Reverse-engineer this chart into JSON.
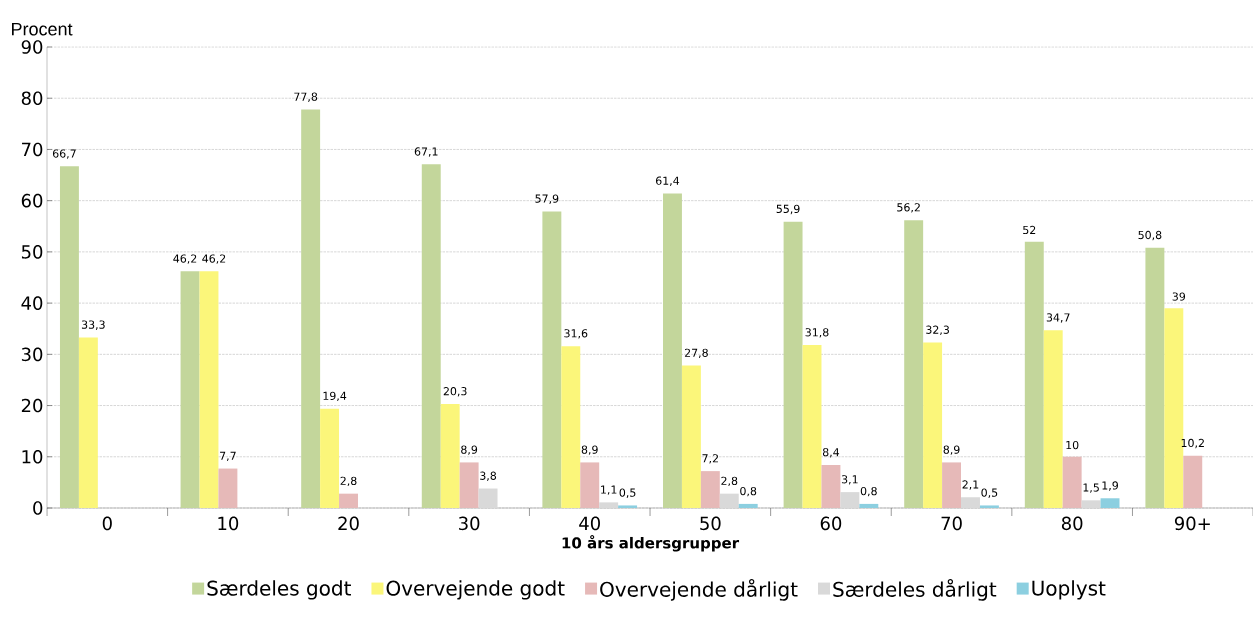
{
  "chart_data": {
    "type": "bar",
    "ylabel": "Procent",
    "xlabel": "10 års aldersgrupper",
    "categories": [
      "0",
      "10",
      "20",
      "30",
      "40",
      "50",
      "60",
      "70",
      "80",
      "90+"
    ],
    "ylim": [
      0,
      90
    ],
    "yticks": [
      0,
      10,
      20,
      30,
      40,
      50,
      60,
      70,
      80,
      90
    ],
    "grid": "y",
    "legend": "bottom",
    "series": [
      {
        "name": "Særdeles godt",
        "color": "#c3d69b",
        "values": [
          66.7,
          46.2,
          77.8,
          67.1,
          57.9,
          61.4,
          55.9,
          56.2,
          52,
          50.8
        ],
        "value_labels": [
          "66,7",
          "46,2",
          "77,8",
          "67,1",
          "57,9",
          "61,4",
          "55,9",
          "56,2",
          "52",
          "50,8"
        ]
      },
      {
        "name": "Overvejende godt",
        "color": "#fbf67a",
        "values": [
          33.3,
          46.2,
          19.4,
          20.3,
          31.6,
          27.8,
          31.8,
          32.3,
          34.7,
          39
        ],
        "value_labels": [
          "33,3",
          "46,2",
          "19,4",
          "20,3",
          "31,6",
          "27,8",
          "31,8",
          "32,3",
          "34,7",
          "39"
        ]
      },
      {
        "name": "Overvejende dårligt",
        "color": "#e6b9b8",
        "values": [
          null,
          7.7,
          2.8,
          8.9,
          8.9,
          7.2,
          8.4,
          8.9,
          10,
          10.2
        ],
        "value_labels": [
          null,
          "7,7",
          "2,8",
          "8,9",
          "8,9",
          "7,2",
          "8,4",
          "8,9",
          "10",
          "10,2"
        ]
      },
      {
        "name": "Særdeles dårligt",
        "color": "#d9d9d9",
        "values": [
          null,
          null,
          null,
          3.8,
          1.1,
          2.8,
          3.1,
          2.1,
          1.5,
          null
        ],
        "value_labels": [
          null,
          null,
          null,
          "3,8",
          "1,1",
          "2,8",
          "3,1",
          "2,1",
          "1,5",
          null
        ]
      },
      {
        "name": "Uoplyst",
        "color": "#8ccfe0",
        "values": [
          null,
          null,
          null,
          null,
          0.5,
          0.8,
          0.8,
          0.5,
          1.9,
          null
        ],
        "value_labels": [
          null,
          null,
          null,
          null,
          "0,5",
          "0,8",
          "0,8",
          "0,5",
          "1,9",
          null
        ]
      }
    ]
  }
}
